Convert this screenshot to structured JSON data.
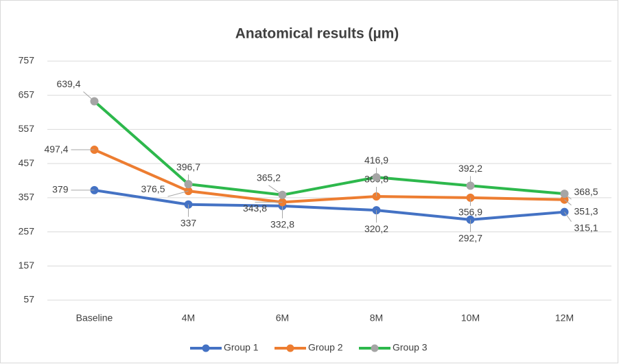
{
  "chart_data": {
    "type": "line",
    "title": "Anatomical results (µm)",
    "categories": [
      "Baseline",
      "4M",
      "6M",
      "8M",
      "10M",
      "12M"
    ],
    "series": [
      {
        "name": "Group 1",
        "color": "#4472c4",
        "marker_color": "#4472c4",
        "values": [
          379,
          337,
          332.8,
          320.2,
          292.7,
          315.1
        ],
        "value_labels": [
          "379",
          "337",
          "332,8",
          "320,2",
          "292,7",
          "315,1"
        ]
      },
      {
        "name": "Group 2",
        "color": "#ed7d31",
        "marker_color": "#ed7d31",
        "values": [
          497.4,
          376.5,
          343.8,
          360.8,
          356.9,
          351.3
        ],
        "value_labels": [
          "497,4",
          "376,5",
          "343,8",
          "360,8",
          "356,9",
          "351,3"
        ]
      },
      {
        "name": "Group 3",
        "color": "#2db84c",
        "marker_color": "#a5a5a5",
        "values": [
          639.4,
          396.7,
          365.2,
          416.9,
          392.2,
          368.5
        ],
        "value_labels": [
          "639,4",
          "396,7",
          "365,2",
          "416,9",
          "392,2",
          "368,5"
        ]
      }
    ],
    "ylim": [
      57,
      757
    ],
    "yticks": [
      57,
      157,
      257,
      357,
      457,
      557,
      657,
      757
    ],
    "grid": true,
    "legend": "bottom"
  }
}
